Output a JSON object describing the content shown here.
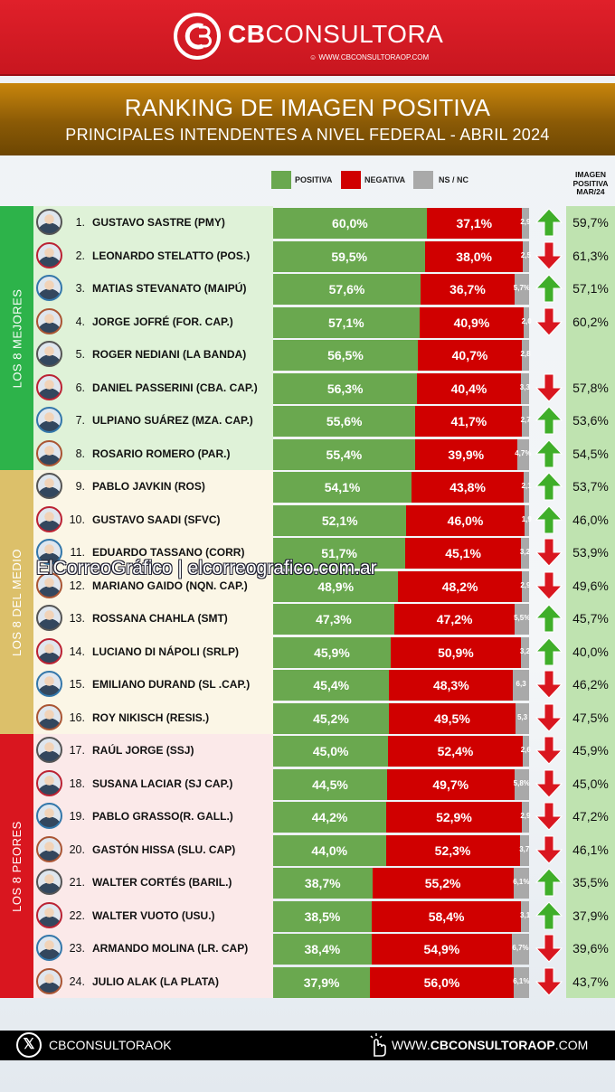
{
  "brand": {
    "name_bold": "CB",
    "name_rest": "CONSULTORA",
    "website_small": "WWW.CBCONSULTORAOP.COM"
  },
  "colors": {
    "header_red": "#d11a22",
    "gold_band": "#8a5a06",
    "positive": "#6aa84f",
    "negative": "#d00000",
    "nsnc": "#a9a9a9",
    "best_group": "#2db34a",
    "middle_group": "#dcc06a",
    "worst_group": "#d9161f",
    "previous_column_bg": "#bfe3b0",
    "arrow_up": "#3fae29",
    "arrow_down": "#d9161f"
  },
  "chart_data": {
    "type": "bar",
    "stacked": true,
    "orientation": "horizontal",
    "title": "RANKING DE IMAGEN POSITIVA",
    "subtitle": "PRINCIPALES INTENDENTES A NIVEL FEDERAL - ABRIL 2024",
    "legend": [
      "POSITIVA",
      "NEGATIVA",
      "NS / NC"
    ],
    "legend_placement": "top",
    "previous_header": "IMAGEN POSITIVA MAR/24",
    "groups": [
      {
        "label": "LOS 8 MEJORES",
        "rows": [
          1,
          8
        ]
      },
      {
        "label": "LOS 8 DEL MEDIO",
        "rows": [
          9,
          16
        ]
      },
      {
        "label": "LOS 8 PEORES",
        "rows": [
          17,
          24
        ]
      }
    ],
    "rows": [
      {
        "rank": "1.",
        "name": "GUSTAVO SASTRE (PMY)",
        "positiva": 60.0,
        "negativa": 37.1,
        "nsnc": 2.9,
        "positiva_label": "60,0%",
        "negativa_label": "37,1%",
        "nsnc_label": "2,9",
        "trend": "up",
        "previous": "59,7%"
      },
      {
        "rank": "2.",
        "name": "LEONARDO STELATTO (POS.)",
        "positiva": 59.5,
        "negativa": 38.0,
        "nsnc": 2.5,
        "positiva_label": "59,5%",
        "negativa_label": "38,0%",
        "nsnc_label": "2,5",
        "trend": "down",
        "previous": "61,3%"
      },
      {
        "rank": "3.",
        "name": "MATIAS STEVANATO (MAIPÚ)",
        "positiva": 57.6,
        "negativa": 36.7,
        "nsnc": 5.7,
        "positiva_label": "57,6%",
        "negativa_label": "36,7%",
        "nsnc_label": "5,7%",
        "trend": "up",
        "previous": "57,1%"
      },
      {
        "rank": "4.",
        "name": "JORGE JOFRÉ (FOR. CAP.)",
        "positiva": 57.1,
        "negativa": 40.9,
        "nsnc": 2.0,
        "positiva_label": "57,1%",
        "negativa_label": "40,9%",
        "nsnc_label": "2,0",
        "trend": "down",
        "previous": "60,2%"
      },
      {
        "rank": "5.",
        "name": "ROGER NEDIANI (LA BANDA)",
        "positiva": 56.5,
        "negativa": 40.7,
        "nsnc": 2.8,
        "positiva_label": "56,5%",
        "negativa_label": "40,7%",
        "nsnc_label": "2,8",
        "trend": "",
        "previous": ""
      },
      {
        "rank": "6.",
        "name": "DANIEL PASSERINI (CBA. CAP.)",
        "positiva": 56.3,
        "negativa": 40.4,
        "nsnc": 3.3,
        "positiva_label": "56,3%",
        "negativa_label": "40,4%",
        "nsnc_label": "3,3",
        "trend": "down",
        "previous": "57,8%"
      },
      {
        "rank": "7.",
        "name": "ULPIANO SUÁREZ (MZA. CAP.)",
        "positiva": 55.6,
        "negativa": 41.7,
        "nsnc": 2.7,
        "positiva_label": "55,6%",
        "negativa_label": "41,7%",
        "nsnc_label": "2,7",
        "trend": "up",
        "previous": "53,6%"
      },
      {
        "rank": "8.",
        "name": "ROSARIO ROMERO (PAR.)",
        "positiva": 55.4,
        "negativa": 39.9,
        "nsnc": 4.7,
        "positiva_label": "55,4%",
        "negativa_label": "39,9%",
        "nsnc_label": "4,7%",
        "trend": "up",
        "previous": "54,5%"
      },
      {
        "rank": "9.",
        "name": "PABLO JAVKIN (ROS)",
        "positiva": 54.1,
        "negativa": 43.8,
        "nsnc": 2.1,
        "positiva_label": "54,1%",
        "negativa_label": "43,8%",
        "nsnc_label": "2,1",
        "trend": "up",
        "previous": "53,7%"
      },
      {
        "rank": "10.",
        "name": "GUSTAVO SAADI (SFVC)",
        "positiva": 52.1,
        "negativa": 46.0,
        "nsnc": 1.9,
        "positiva_label": "52,1%",
        "negativa_label": "46,0%",
        "nsnc_label": "1,9",
        "trend": "up",
        "previous": "46,0%"
      },
      {
        "rank": "11.",
        "name": "EDUARDO TASSANO (CORR)",
        "positiva": 51.7,
        "negativa": 45.1,
        "nsnc": 3.2,
        "positiva_label": "51,7%",
        "negativa_label": "45,1%",
        "nsnc_label": "3,2",
        "trend": "down",
        "previous": "53,9%"
      },
      {
        "rank": "12.",
        "name": "MARIANO GAIDO (NQN. CAP.)",
        "positiva": 48.9,
        "negativa": 48.2,
        "nsnc": 2.9,
        "positiva_label": "48,9%",
        "negativa_label": "48,2%",
        "nsnc_label": "2,9",
        "trend": "down",
        "previous": "49,6%"
      },
      {
        "rank": "13.",
        "name": "ROSSANA CHAHLA (SMT)",
        "positiva": 47.3,
        "negativa": 47.2,
        "nsnc": 5.5,
        "positiva_label": "47,3%",
        "negativa_label": "47,2%",
        "nsnc_label": "5,5%",
        "trend": "up",
        "previous": "45,7%"
      },
      {
        "rank": "14.",
        "name": "LUCIANO DI NÁPOLI (SRLP)",
        "positiva": 45.9,
        "negativa": 50.9,
        "nsnc": 3.2,
        "positiva_label": "45,9%",
        "negativa_label": "50,9%",
        "nsnc_label": "3,2",
        "trend": "up",
        "previous": "40,0%"
      },
      {
        "rank": "15.",
        "name": "EMILIANO DURAND (SL .CAP.)",
        "positiva": 45.4,
        "negativa": 48.3,
        "nsnc": 6.3,
        "positiva_label": "45,4%",
        "negativa_label": "48,3%",
        "nsnc_label": "6,3",
        "trend": "down",
        "previous": "46,2%"
      },
      {
        "rank": "16.",
        "name": "ROY NIKISCH (RESIS.)",
        "positiva": 45.2,
        "negativa": 49.5,
        "nsnc": 5.3,
        "positiva_label": "45,2%",
        "negativa_label": "49,5%",
        "nsnc_label": "5,3",
        "trend": "down",
        "previous": "47,5%"
      },
      {
        "rank": "17.",
        "name": "RAÚL JORGE (SSJ)",
        "positiva": 45.0,
        "negativa": 52.4,
        "nsnc": 2.6,
        "positiva_label": "45,0%",
        "negativa_label": "52,4%",
        "nsnc_label": "2,6",
        "trend": "down",
        "previous": "45,9%"
      },
      {
        "rank": "18.",
        "name": "SUSANA LACIAR (SJ CAP.)",
        "positiva": 44.5,
        "negativa": 49.7,
        "nsnc": 5.8,
        "positiva_label": "44,5%",
        "negativa_label": "49,7%",
        "nsnc_label": "5,8%",
        "trend": "down",
        "previous": "45,0%"
      },
      {
        "rank": "19.",
        "name": "PABLO GRASSO(R. GALL.)",
        "positiva": 44.2,
        "negativa": 52.9,
        "nsnc": 2.9,
        "positiva_label": "44,2%",
        "negativa_label": "52,9%",
        "nsnc_label": "2,9",
        "trend": "down",
        "previous": "47,2%"
      },
      {
        "rank": "20.",
        "name": "GASTÓN HISSA (SLU. CAP)",
        "positiva": 44.0,
        "negativa": 52.3,
        "nsnc": 3.7,
        "positiva_label": "44,0%",
        "negativa_label": "52,3%",
        "nsnc_label": "3,7",
        "trend": "down",
        "previous": "46,1%"
      },
      {
        "rank": "21.",
        "name": "WALTER CORTÉS (BARIL.)",
        "positiva": 38.7,
        "negativa": 55.2,
        "nsnc": 6.1,
        "positiva_label": "38,7%",
        "negativa_label": "55,2%",
        "nsnc_label": "6,1%",
        "trend": "up",
        "previous": "35,5%"
      },
      {
        "rank": "22.",
        "name": "WALTER VUOTO (USU.)",
        "positiva": 38.5,
        "negativa": 58.4,
        "nsnc": 3.1,
        "positiva_label": "38,5%",
        "negativa_label": "58,4%",
        "nsnc_label": "3,1",
        "trend": "up",
        "previous": "37,9%"
      },
      {
        "rank": "23.",
        "name": "ARMANDO MOLINA (LR. CAP)",
        "positiva": 38.4,
        "negativa": 54.9,
        "nsnc": 6.7,
        "positiva_label": "38,4%",
        "negativa_label": "54,9%",
        "nsnc_label": "6,7%",
        "trend": "down",
        "previous": "39,6%"
      },
      {
        "rank": "24.",
        "name": "JULIO ALAK (LA PLATA)",
        "positiva": 37.9,
        "negativa": 56.0,
        "nsnc": 6.1,
        "positiva_label": "37,9%",
        "negativa_label": "56,0%",
        "nsnc_label": "6,1%",
        "trend": "down",
        "previous": "43,7%"
      }
    ]
  },
  "watermark": "ElCorreoGráfico | elcorreografico.com.ar",
  "footer": {
    "social_handle": "CBCONSULTORAOK",
    "social_icon": "x-icon",
    "website_prefix": "WWW.",
    "website_bold": "CBCONSULTORAOP",
    "website_suffix": ".COM",
    "website_icon": "hand-pointer-icon"
  }
}
